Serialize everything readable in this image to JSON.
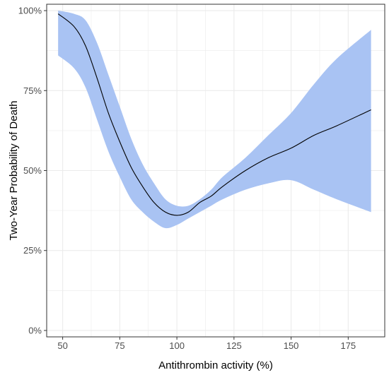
{
  "chart_data": {
    "type": "line",
    "title": "",
    "xlabel": "Antithrombin activity (%)",
    "ylabel": "Two-Year Probability of Death",
    "xlim": [
      43,
      191
    ],
    "ylim": [
      -0.02,
      1.02
    ],
    "x_ticks": [
      50,
      75,
      100,
      125,
      150,
      175
    ],
    "x_tick_labels": [
      "50",
      "75",
      "100",
      "125",
      "150",
      "175"
    ],
    "y_ticks": [
      0,
      0.25,
      0.5,
      0.75,
      1.0
    ],
    "y_tick_labels": [
      "0%",
      "25%",
      "50%",
      "75%",
      "100%"
    ],
    "grid": true,
    "legend": "none",
    "colors": {
      "line": "#000000",
      "ribbon": "#a9c3f3",
      "grid": "#ebebeb",
      "panel_border": "#333333"
    },
    "series": [
      {
        "x": [
          48,
          55,
          60,
          65,
          70,
          75,
          80,
          85,
          90,
          95,
          100,
          105,
          110,
          115,
          120,
          130,
          140,
          150,
          160,
          170,
          185
        ],
        "y": [
          0.99,
          0.95,
          0.89,
          0.79,
          0.68,
          0.59,
          0.51,
          0.45,
          0.4,
          0.37,
          0.36,
          0.37,
          0.4,
          0.42,
          0.45,
          0.5,
          0.54,
          0.57,
          0.61,
          0.64,
          0.69
        ],
        "lower": [
          0.86,
          0.82,
          0.76,
          0.66,
          0.56,
          0.48,
          0.41,
          0.37,
          0.34,
          0.32,
          0.33,
          0.35,
          0.37,
          0.39,
          0.41,
          0.44,
          0.46,
          0.47,
          0.44,
          0.41,
          0.37
        ],
        "upper": [
          1.0,
          0.99,
          0.97,
          0.9,
          0.8,
          0.7,
          0.6,
          0.52,
          0.46,
          0.41,
          0.39,
          0.39,
          0.41,
          0.44,
          0.48,
          0.54,
          0.61,
          0.68,
          0.77,
          0.85,
          0.94
        ]
      }
    ]
  }
}
